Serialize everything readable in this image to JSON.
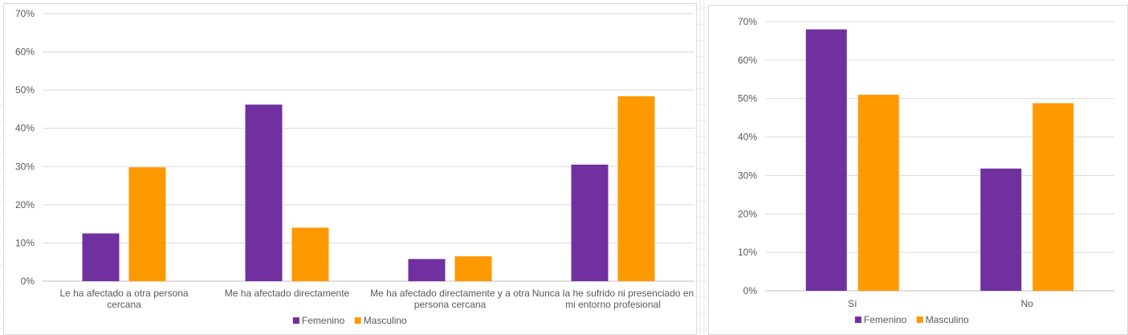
{
  "colors": {
    "femenino": "#7030a0",
    "masculino": "#ff9900",
    "grid": "#d9d9d9",
    "axis": "#bfbfbf",
    "text": "#595959"
  },
  "chart_data": [
    {
      "type": "bar",
      "categories": [
        [
          "Le ha afectado a otra persona",
          "cercana"
        ],
        [
          "Me ha afectado directamente"
        ],
        [
          "Me ha afectado directamente y a otra",
          "persona cercana"
        ],
        [
          "Nunca la he sufrido ni presenciado en",
          "mi entorno profesional"
        ]
      ],
      "series": [
        {
          "name": "Femenino",
          "values": [
            12.5,
            46.2,
            5.8,
            30.5
          ],
          "color_key": "femenino"
        },
        {
          "name": "Masculino",
          "values": [
            29.8,
            14.0,
            6.5,
            48.4
          ],
          "color_key": "masculino"
        }
      ],
      "yticks": [
        "0%",
        "10%",
        "20%",
        "30%",
        "40%",
        "50%",
        "60%",
        "70%"
      ],
      "ylim": [
        0,
        70
      ],
      "ylabel_format": "percent",
      "grid": true,
      "legend": "bottom-center"
    },
    {
      "type": "bar",
      "categories": [
        [
          "Sí"
        ],
        [
          "No"
        ]
      ],
      "series": [
        {
          "name": "Femenino",
          "values": [
            68.0,
            31.8
          ],
          "color_key": "femenino"
        },
        {
          "name": "Masculino",
          "values": [
            51.0,
            48.8
          ],
          "color_key": "masculino"
        }
      ],
      "yticks": [
        "0%",
        "10%",
        "20%",
        "30%",
        "40%",
        "50%",
        "60%",
        "70%"
      ],
      "ylim": [
        0,
        70
      ],
      "ylabel_format": "percent",
      "grid": true,
      "legend": "bottom-center"
    }
  ]
}
